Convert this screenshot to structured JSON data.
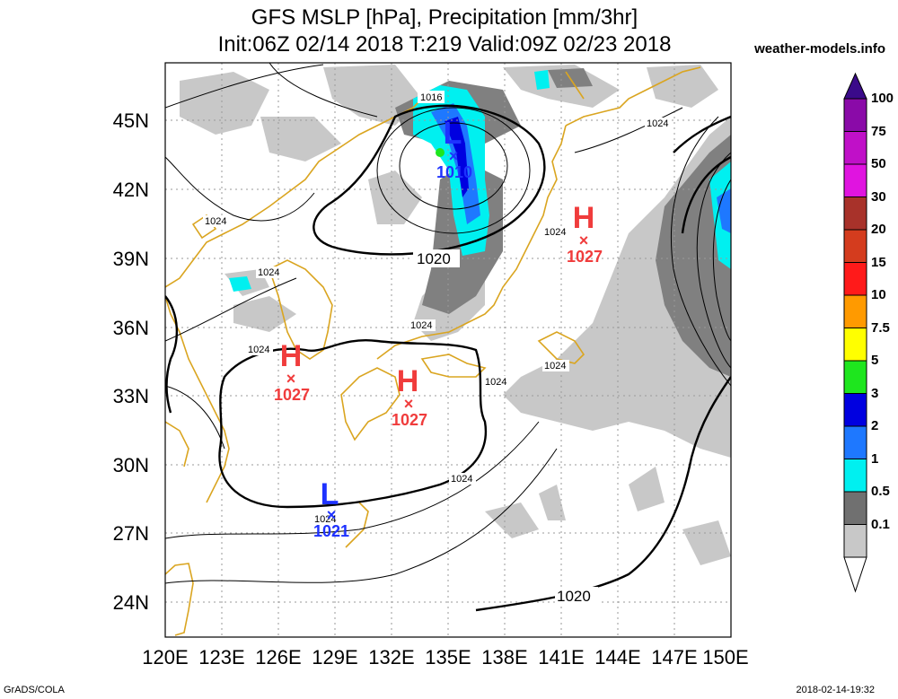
{
  "title": {
    "line1": "GFS MSLP [hPa], Precipitation [mm/3hr]",
    "line2": "Init:06Z 02/14 2018 T:219 Valid:09Z 02/23 2018"
  },
  "site": "weather-models.info",
  "footer": {
    "left": "GrADS/COLA",
    "right": "2018-02-14-19:32"
  },
  "lat_labels": [
    "45N",
    "42N",
    "39N",
    "36N",
    "33N",
    "30N",
    "27N",
    "24N"
  ],
  "lon_labels": [
    "120E",
    "123E",
    "126E",
    "129E",
    "132E",
    "135E",
    "138E",
    "141E",
    "144E",
    "147E",
    "150E"
  ],
  "colorbar": {
    "labels": [
      "100",
      "75",
      "50",
      "30",
      "20",
      "15",
      "10",
      "7.5",
      "5",
      "3",
      "2",
      "1",
      "0.5",
      "0.1"
    ],
    "colors": [
      "#3a0a8a",
      "#8a0aa8",
      "#c010c8",
      "#e014e0",
      "#a8322a",
      "#d43c1e",
      "#ff1a1a",
      "#ff9a00",
      "#ffff00",
      "#1ee61e",
      "#0000e0",
      "#1e78ff",
      "#00f0f0",
      "#707070",
      "#c8c8c8"
    ]
  },
  "centers": [
    {
      "type": "L",
      "value": "1010",
      "color": "#1e32ff"
    },
    {
      "type": "H",
      "value": "1027",
      "color": "#f03c3c"
    },
    {
      "type": "H",
      "value": "1027",
      "color": "#f03c3c"
    },
    {
      "type": "H",
      "value": "1027",
      "color": "#f03c3c"
    },
    {
      "type": "L",
      "value": "1021",
      "color": "#1e32ff"
    }
  ],
  "isobar_labels": {
    "a": "1016",
    "b": "1020",
    "c": "1024",
    "d": "1024",
    "e": "1024",
    "f": "1024",
    "g": "1024",
    "h": "1024",
    "i": "1024",
    "j": "1024",
    "k": "1024",
    "l": "1020",
    "m": "1024"
  }
}
